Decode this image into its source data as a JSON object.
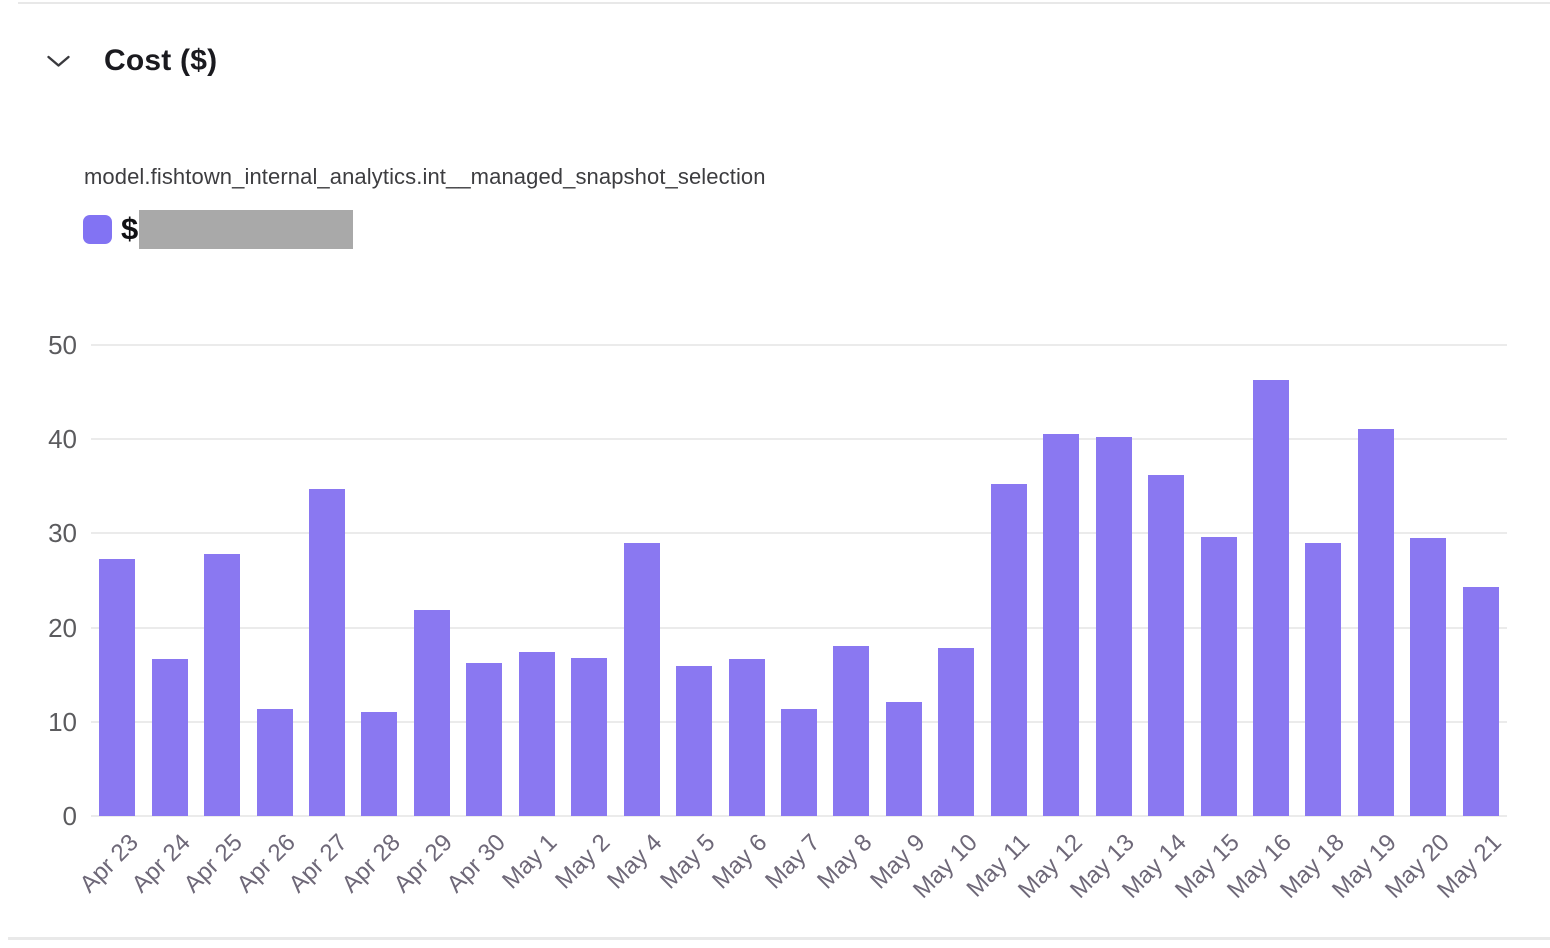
{
  "page": {
    "background": "#ffffff"
  },
  "header": {
    "title": "Cost ($)"
  },
  "legend": {
    "series_title": "model.fishtown_internal_analytics.int__managed_snapshot_selection",
    "value_prefix": "$",
    "value_redacted": true,
    "swatch_color": "#8273F3",
    "redaction_color": "#A9A9A9"
  },
  "chart_data": {
    "type": "bar",
    "title": "Cost ($)",
    "series_name": "model.fishtown_internal_analytics.int__managed_snapshot_selection",
    "categories": [
      "Apr 23",
      "Apr 24",
      "Apr 25",
      "Apr 26",
      "Apr 27",
      "Apr 28",
      "Apr 29",
      "Apr 30",
      "May 1",
      "May 2",
      "May 4",
      "May 5",
      "May 6",
      "May 7",
      "May 8",
      "May 9",
      "May 10",
      "May 11",
      "May 12",
      "May 13",
      "May 14",
      "May 15",
      "May 16",
      "May 18",
      "May 19",
      "May 20",
      "May 21"
    ],
    "values": [
      27.3,
      16.7,
      27.8,
      11.4,
      34.7,
      11.0,
      21.9,
      16.2,
      17.4,
      16.8,
      29.0,
      15.9,
      16.7,
      11.4,
      18.0,
      12.1,
      17.8,
      35.2,
      40.5,
      40.2,
      36.2,
      29.6,
      46.3,
      29.0,
      41.1,
      29.5,
      24.3
    ],
    "xlabel": "",
    "ylabel": "",
    "ylim": [
      0,
      50
    ],
    "yticks": [
      0,
      10,
      20,
      30,
      40,
      50
    ],
    "grid": true,
    "legend_position": "top-left",
    "bar_color": "#8A78F1",
    "gridline_color": "#EBEBEB",
    "x_tick_color": "#6E6878",
    "y_tick_color": "#5B5B5E"
  }
}
